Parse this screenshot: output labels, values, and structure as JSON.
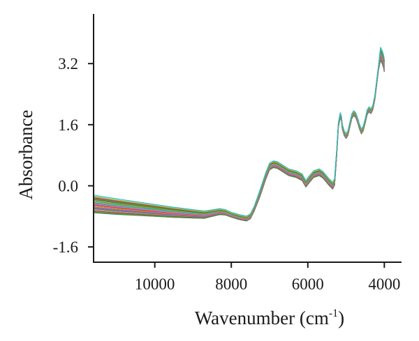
{
  "chart_data": {
    "type": "line",
    "title": "",
    "xlabel": "Wavenumber (cm",
    "xlabel_sup": "-1",
    "xlabel_suffix": ")",
    "ylabel": "Absorbance",
    "xlim": [
      11600,
      3550
    ],
    "ylim": [
      -2.0,
      4.5
    ],
    "x_reversed": true,
    "grid": false,
    "legend": "none",
    "xticks": [
      {
        "value": 10000,
        "label": "10000"
      },
      {
        "value": 8000,
        "label": "8000"
      },
      {
        "value": 6000,
        "label": "6000"
      },
      {
        "value": 4000,
        "label": "4000"
      }
    ],
    "yticks": [
      {
        "value": 3.2,
        "label": "3.2"
      },
      {
        "value": 1.6,
        "label": "1.6"
      },
      {
        "value": 0.0,
        "label": "0.0"
      },
      {
        "value": -1.6,
        "label": "-1.6"
      }
    ],
    "series_count": 40,
    "series_colors": [
      "#1f77b4",
      "#ff7f0e",
      "#2ca02c",
      "#d62728",
      "#9467bd",
      "#8c564b",
      "#e377c2",
      "#7f7f7f",
      "#bcbd22",
      "#17becf",
      "#5b6abf",
      "#e05a3a",
      "#3aa15a",
      "#a85fc7",
      "#d9a52b"
    ],
    "mean_spectrum": {
      "x": [
        11600,
        11000,
        10500,
        10000,
        9500,
        9000,
        8700,
        8500,
        8300,
        8150,
        8000,
        7800,
        7600,
        7500,
        7400,
        7250,
        7100,
        7000,
        6900,
        6800,
        6700,
        6500,
        6300,
        6150,
        6050,
        5950,
        5850,
        5700,
        5600,
        5450,
        5350,
        5300,
        5250,
        5200,
        5150,
        5120,
        5100,
        5050,
        5000,
        4950,
        4900,
        4850,
        4800,
        4750,
        4700,
        4650,
        4600,
        4550,
        4500,
        4450,
        4400,
        4350,
        4300,
        4250,
        4200,
        4150,
        4100,
        4050,
        4020,
        4000
      ],
      "y": [
        -0.48,
        -0.55,
        -0.6,
        -0.65,
        -0.7,
        -0.74,
        -0.76,
        -0.72,
        -0.68,
        -0.7,
        -0.76,
        -0.82,
        -0.86,
        -0.8,
        -0.6,
        -0.2,
        0.25,
        0.5,
        0.56,
        0.54,
        0.48,
        0.35,
        0.3,
        0.22,
        0.05,
        0.18,
        0.3,
        0.35,
        0.28,
        0.1,
        0.0,
        0.1,
        0.8,
        1.6,
        1.85,
        1.75,
        1.55,
        1.38,
        1.3,
        1.38,
        1.6,
        1.82,
        1.9,
        1.85,
        1.72,
        1.55,
        1.42,
        1.5,
        1.7,
        1.92,
        2.0,
        1.95,
        2.05,
        2.3,
        2.7,
        3.1,
        3.45,
        3.35,
        3.25,
        3.15
      ]
    }
  }
}
